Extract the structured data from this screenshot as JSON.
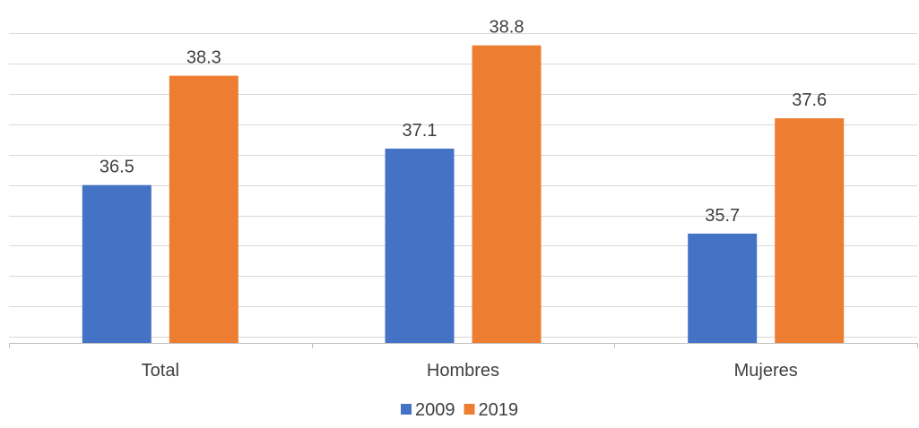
{
  "chart_data": {
    "type": "bar",
    "categories": [
      "Total",
      "Hombres",
      "Mujeres"
    ],
    "series": [
      {
        "name": "2009",
        "values": [
          36.5,
          37.1,
          35.7
        ],
        "color": "#4472c4"
      },
      {
        "name": "2019",
        "values": [
          38.3,
          38.8,
          37.6
        ],
        "color": "#ed7d31"
      }
    ],
    "ylim": [
      33.9,
      39.4
    ],
    "y_tick_step": 0.5,
    "grid": true,
    "data_labels": true,
    "legend_position": "bottom"
  }
}
